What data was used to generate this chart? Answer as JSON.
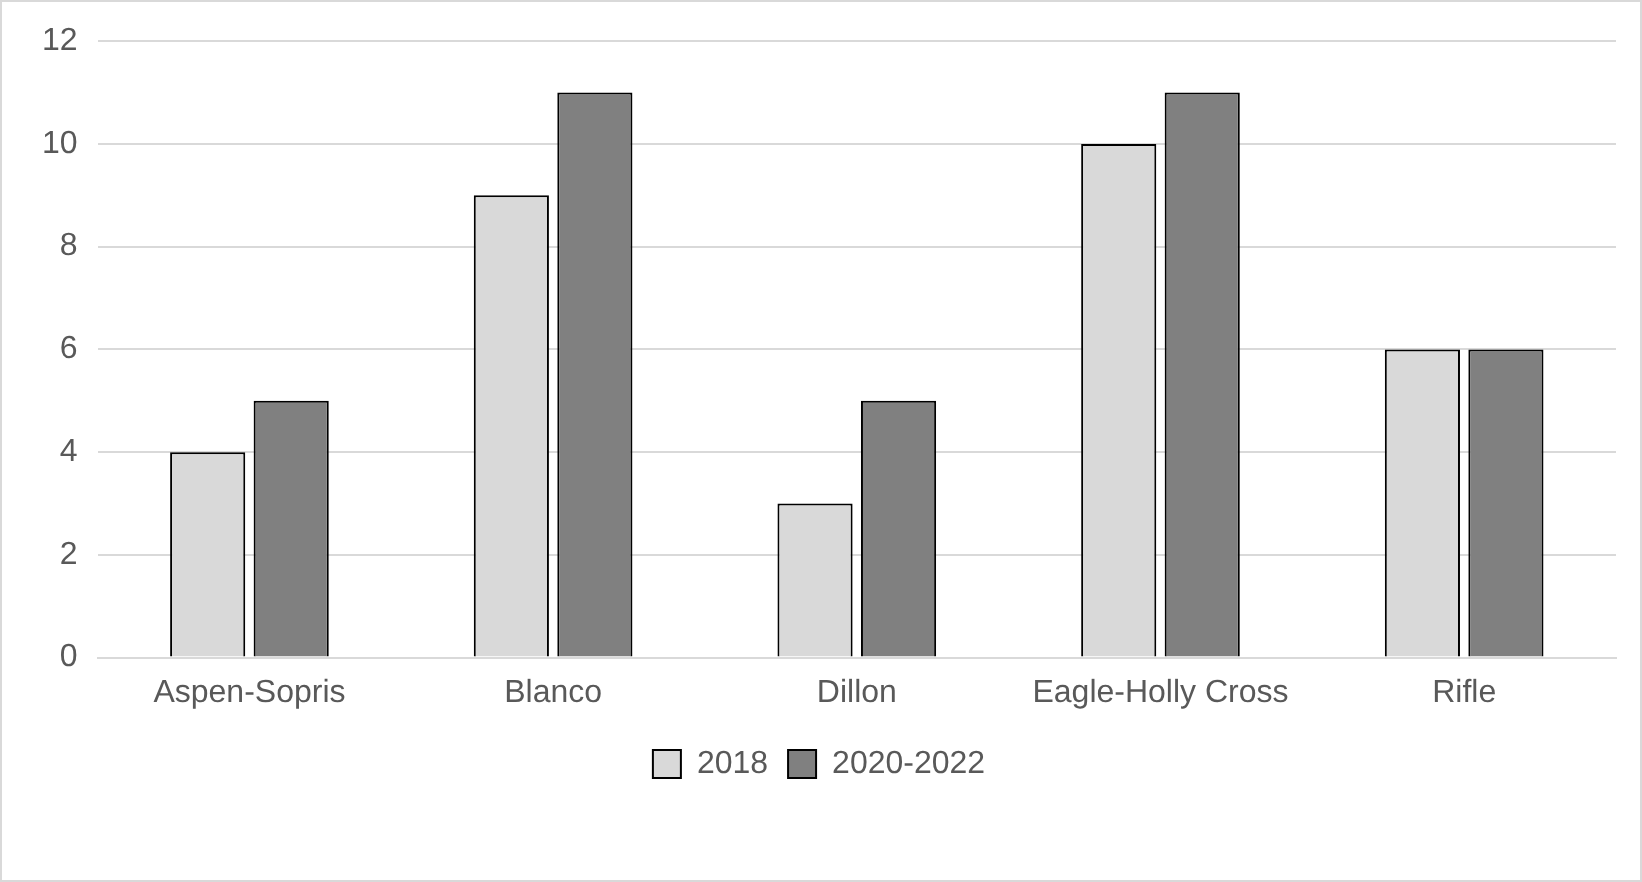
{
  "chart_data": {
    "type": "bar",
    "categories": [
      "Aspen-Sopris",
      "Blanco",
      "Dillon",
      "Eagle-Holly Cross",
      "Rifle"
    ],
    "series": [
      {
        "name": "2018",
        "color": "#d9d9d9",
        "values": [
          4,
          9,
          3,
          10,
          6
        ]
      },
      {
        "name": "2020-2022",
        "color": "#808080",
        "values": [
          5,
          11,
          5,
          11,
          6
        ]
      }
    ],
    "ylim": [
      0,
      12
    ],
    "yticks": [
      0,
      2,
      4,
      6,
      8,
      10,
      12
    ],
    "grid": "y",
    "legend": "bottom"
  }
}
